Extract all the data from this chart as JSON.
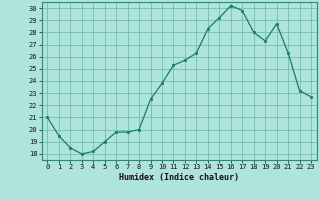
{
  "x": [
    0,
    1,
    2,
    3,
    4,
    5,
    6,
    7,
    8,
    9,
    10,
    11,
    12,
    13,
    14,
    15,
    16,
    17,
    18,
    19,
    20,
    21,
    22,
    23
  ],
  "y": [
    21,
    19.5,
    18.5,
    18,
    18.2,
    19,
    19.8,
    19.8,
    20,
    22.5,
    23.8,
    25.3,
    25.7,
    26.3,
    28.3,
    29.2,
    30.2,
    29.8,
    28.0,
    27.3,
    28.7,
    26.3,
    23.2,
    22.7
  ],
  "line_color": "#1a7a6e",
  "marker_color": "#1a7a6e",
  "bg_color": "#aee4dc",
  "grid_color": "#6dbfb8",
  "xlabel": "Humidex (Indice chaleur)",
  "ylim": [
    17.5,
    30.5
  ],
  "xlim": [
    -0.5,
    23.5
  ],
  "yticks": [
    18,
    19,
    20,
    21,
    22,
    23,
    24,
    25,
    26,
    27,
    28,
    29,
    30
  ],
  "xticks": [
    0,
    1,
    2,
    3,
    4,
    5,
    6,
    7,
    8,
    9,
    10,
    11,
    12,
    13,
    14,
    15,
    16,
    17,
    18,
    19,
    20,
    21,
    22,
    23
  ],
  "xtick_labels": [
    "0",
    "1",
    "2",
    "3",
    "4",
    "5",
    "6",
    "7",
    "8",
    "9",
    "10",
    "11",
    "12",
    "13",
    "14",
    "15",
    "16",
    "17",
    "18",
    "19",
    "20",
    "21",
    "22",
    "23"
  ],
  "ytick_labels": [
    "18",
    "19",
    "20",
    "21",
    "22",
    "23",
    "24",
    "25",
    "26",
    "27",
    "28",
    "29",
    "30"
  ]
}
